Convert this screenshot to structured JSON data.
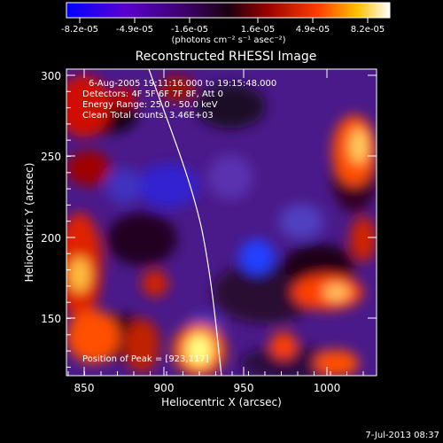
{
  "colorbar": {
    "ticks": [
      "-8.2e-05",
      "-4.9e-05",
      "-1.6e-05",
      "1.6e-05",
      "4.9e-05",
      "8.2e-05"
    ],
    "unit_label": "(photons cm⁻² s⁻¹ asec⁻²)",
    "colors": [
      "#0000ff",
      "#6a00c8",
      "#2a0030",
      "#8a0000",
      "#ff3000",
      "#ff9a00",
      "#ffff80",
      "#ffffff"
    ]
  },
  "plot": {
    "title": "Reconstructed RHESSI Image",
    "xlabel": "Heliocentric X (arcsec)",
    "ylabel": "Heliocentric Y (arcsec)",
    "xticks": [
      "850",
      "900",
      "950",
      "1000"
    ],
    "yticks": [
      "300",
      "250",
      "200",
      "150"
    ],
    "info_lines": [
      "6-Aug-2005 19:11:16.000 to 19:15:48.000",
      "Detectors: 4F 5F 6F 7F 8F, Att 0",
      "Energy Range: 25.0 - 50.0 keV",
      "Clean    Total counts: 3.46E+03"
    ],
    "peak_label": "Position of Peak = [923,117]"
  },
  "footer": {
    "timestamp": "7-Jul-2013 08:37"
  }
}
